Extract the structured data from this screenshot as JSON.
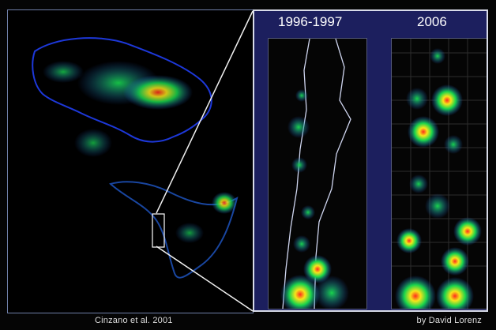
{
  "labels": {
    "before": "1996-1997",
    "after": "2006",
    "left_credit": "Cinzano et al. 2001",
    "right_credit": "by David Lorenz"
  },
  "colors": {
    "background": "#000000",
    "panel_border": "#d8dbe8",
    "inset_background": "#1c1f5e",
    "light_low": "#1f57c8",
    "light_mid": "#18d44c",
    "light_high": "#f6e51a",
    "light_peak": "#ff2b1d"
  }
}
